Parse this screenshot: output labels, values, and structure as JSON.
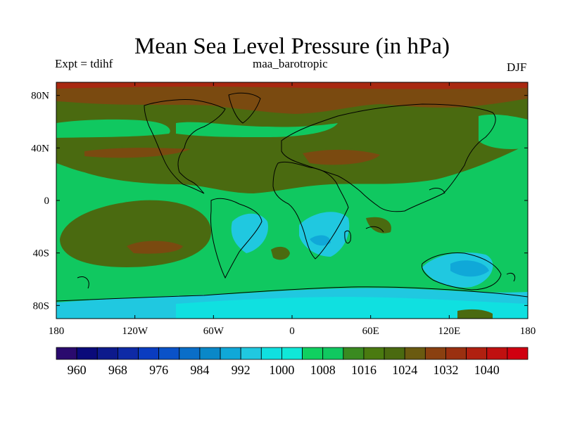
{
  "header": {
    "title": "Mean Sea Level Pressure (in hPa)",
    "experiment": "Expt = tdihf",
    "run_name": "maa_barotropic",
    "season": "DJF"
  },
  "map": {
    "projection": "cylindrical-equidistant",
    "lon_range": [
      -180,
      180
    ],
    "lat_range": [
      -90,
      90
    ],
    "lat_ticks": [
      {
        "value": 80,
        "label": "80N"
      },
      {
        "value": 40,
        "label": "40N"
      },
      {
        "value": 0,
        "label": "0"
      },
      {
        "value": -40,
        "label": "40S"
      },
      {
        "value": -80,
        "label": "80S"
      }
    ],
    "lon_ticks": [
      {
        "value": -180,
        "label": "180"
      },
      {
        "value": -120,
        "label": "120W"
      },
      {
        "value": -60,
        "label": "60W"
      },
      {
        "value": 0,
        "label": "0"
      },
      {
        "value": 60,
        "label": "60E"
      },
      {
        "value": 120,
        "label": "120E"
      },
      {
        "value": 180,
        "label": "180"
      }
    ]
  },
  "colorbar": {
    "levels": [
      956,
      960,
      964,
      968,
      972,
      976,
      980,
      984,
      988,
      992,
      996,
      1000,
      1004,
      1008,
      1012,
      1016,
      1020,
      1024,
      1028,
      1032,
      1036,
      1040,
      1044
    ],
    "colors": [
      "#2a0a6e",
      "#0a0a7a",
      "#0d1a8c",
      "#0e2aa6",
      "#0a3cc0",
      "#0a52c8",
      "#0a6ec8",
      "#0a88c8",
      "#10a8d8",
      "#20c8e0",
      "#10e0e0",
      "#10e8d8",
      "#10d060",
      "#10c860",
      "#3a8a20",
      "#4a7a10",
      "#4a6a10",
      "#6a5a10",
      "#8a4010",
      "#9a3010",
      "#b02010",
      "#c01010",
      "#d00010"
    ],
    "label_values": [
      "960",
      "968",
      "976",
      "984",
      "992",
      "1000",
      "1008",
      "1016",
      "1024",
      "1032",
      "1040"
    ]
  },
  "legend_colors": {
    "cyan_low": "#10e0e0",
    "light_cyan": "#20c8e0",
    "green": "#10c860",
    "olive": "#4a6a10",
    "brown": "#7a4a10",
    "red": "#a82810"
  }
}
